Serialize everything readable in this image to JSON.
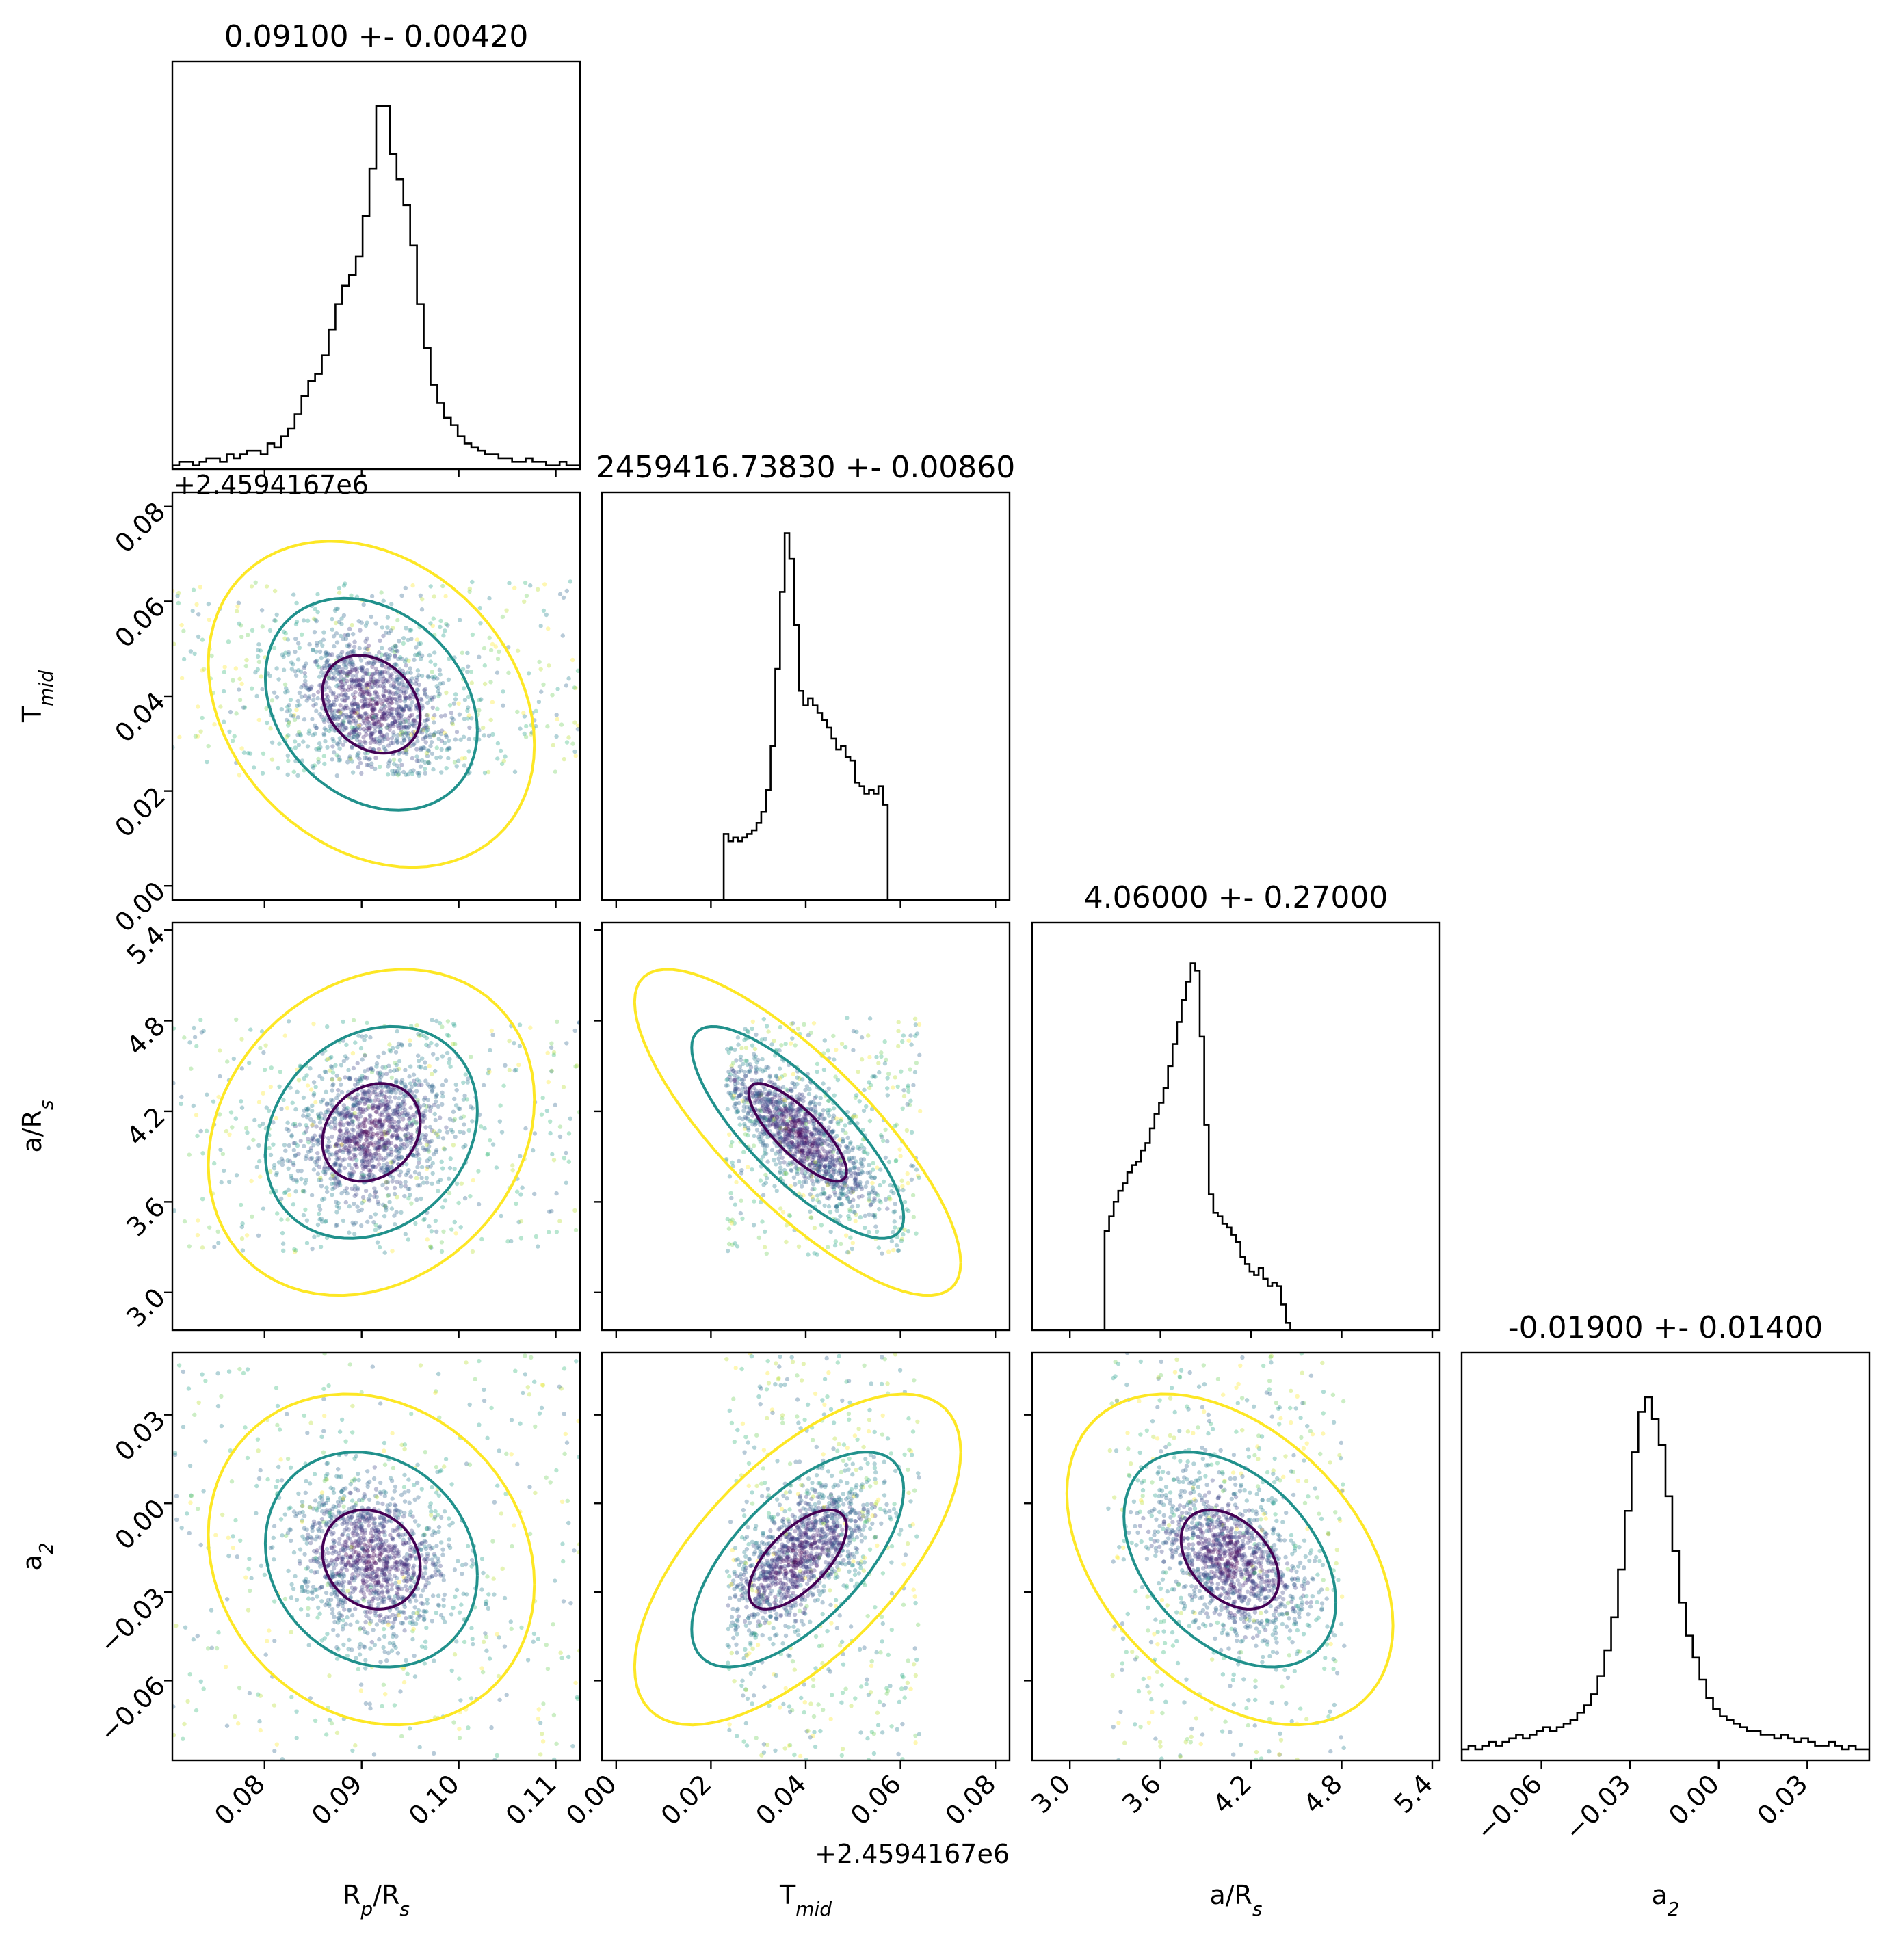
{
  "chart_data": {
    "type": "corner",
    "parameters": [
      {
        "key": "rp",
        "label": "R_p/R_s",
        "range": [
          0.0705,
          0.1125
        ],
        "ticks": [
          0.08,
          0.09,
          0.1,
          0.11
        ],
        "tick_labels": [
          "0.08",
          "0.09",
          "0.10",
          "0.11"
        ],
        "title": "0.09100 +- 0.00420",
        "mean": 0.091,
        "sigma": 0.0042,
        "offset": ""
      },
      {
        "key": "tmid",
        "label": "T_mid",
        "range": [
          -0.003,
          0.083
        ],
        "ticks": [
          0.0,
          0.02,
          0.04,
          0.06,
          0.08
        ],
        "tick_labels": [
          "0.00",
          "0.02",
          "0.04",
          "0.06",
          "0.08"
        ],
        "title": "2459416.73830 +- 0.00860",
        "mean": 0.0383,
        "sigma": 0.0086,
        "offset": "+2.4594167e6"
      },
      {
        "key": "ars",
        "label": "a/R_s",
        "range": [
          2.75,
          5.45
        ],
        "ticks": [
          3.0,
          3.6,
          4.2,
          4.8,
          5.4
        ],
        "tick_labels": [
          "3.0",
          "3.6",
          "4.2",
          "4.8",
          "5.4"
        ],
        "title": "4.06000 +- 0.27000",
        "mean": 4.06,
        "sigma": 0.27,
        "offset": ""
      },
      {
        "key": "a2",
        "label": "a_2",
        "range": [
          -0.087,
          0.051
        ],
        "ticks": [
          -0.06,
          -0.03,
          0.0,
          0.03
        ],
        "tick_labels": [
          "−0.06",
          "−0.03",
          "0.00",
          "0.03"
        ],
        "title": "-0.01900 +- 0.01400",
        "mean": -0.019,
        "sigma": 0.014,
        "offset": ""
      }
    ],
    "histograms": {
      "rp": [
        0.01,
        0.02,
        0.02,
        0.01,
        0.02,
        0.03,
        0.03,
        0.02,
        0.04,
        0.03,
        0.04,
        0.05,
        0.05,
        0.04,
        0.07,
        0.06,
        0.09,
        0.11,
        0.15,
        0.2,
        0.24,
        0.26,
        0.31,
        0.38,
        0.45,
        0.5,
        0.53,
        0.58,
        0.69,
        0.82,
        0.99,
        0.99,
        0.86,
        0.79,
        0.72,
        0.61,
        0.45,
        0.33,
        0.23,
        0.18,
        0.14,
        0.12,
        0.09,
        0.07,
        0.06,
        0.05,
        0.04,
        0.04,
        0.03,
        0.03,
        0.02,
        0.02,
        0.03,
        0.02,
        0.02,
        0.01,
        0.01,
        0.02,
        0.01,
        0.01
      ],
      "tmid": [
        0,
        0,
        0,
        0,
        0,
        0,
        0,
        0,
        0,
        0,
        0,
        0,
        0,
        0,
        0,
        0,
        0,
        0,
        0,
        0,
        0,
        0,
        0,
        0,
        0,
        0,
        0.18,
        0.16,
        0.17,
        0.16,
        0.17,
        0.18,
        0.19,
        0.21,
        0.24,
        0.3,
        0.42,
        0.63,
        0.84,
        1.0,
        0.93,
        0.75,
        0.57,
        0.53,
        0.55,
        0.53,
        0.51,
        0.49,
        0.47,
        0.44,
        0.41,
        0.42,
        0.39,
        0.38,
        0.32,
        0.31,
        0.29,
        0.3,
        0.29,
        0.31,
        0.26,
        0.0,
        0,
        0,
        0,
        0,
        0,
        0,
        0,
        0,
        0,
        0,
        0,
        0,
        0,
        0,
        0,
        0,
        0,
        0,
        0,
        0,
        0,
        0,
        0,
        0,
        0
      ],
      "ars": [
        0,
        0,
        0,
        0,
        0,
        0,
        0,
        0,
        0,
        0,
        0,
        0,
        0,
        0,
        0,
        0,
        0.27,
        0.31,
        0.35,
        0.38,
        0.4,
        0.43,
        0.45,
        0.46,
        0.49,
        0.51,
        0.55,
        0.59,
        0.62,
        0.66,
        0.72,
        0.78,
        0.84,
        0.9,
        0.95,
        1.0,
        0.98,
        0.8,
        0.56,
        0.37,
        0.32,
        0.31,
        0.29,
        0.28,
        0.26,
        0.24,
        0.2,
        0.18,
        0.16,
        0.15,
        0.17,
        0.14,
        0.12,
        0.13,
        0.12,
        0.07,
        0.02,
        0,
        0,
        0,
        0,
        0,
        0,
        0,
        0,
        0,
        0,
        0,
        0,
        0,
        0,
        0,
        0,
        0,
        0,
        0,
        0,
        0,
        0,
        0,
        0,
        0,
        0,
        0,
        0,
        0,
        0,
        0,
        0,
        0
      ],
      "a2": [
        0.03,
        0.04,
        0.03,
        0.04,
        0.05,
        0.04,
        0.05,
        0.06,
        0.07,
        0.06,
        0.07,
        0.08,
        0.09,
        0.08,
        0.09,
        0.1,
        0.11,
        0.13,
        0.15,
        0.18,
        0.23,
        0.3,
        0.39,
        0.52,
        0.68,
        0.84,
        0.95,
        0.99,
        0.93,
        0.86,
        0.72,
        0.57,
        0.43,
        0.34,
        0.28,
        0.22,
        0.17,
        0.14,
        0.12,
        0.11,
        0.1,
        0.09,
        0.08,
        0.08,
        0.07,
        0.07,
        0.06,
        0.07,
        0.06,
        0.05,
        0.06,
        0.05,
        0.04,
        0.04,
        0.05,
        0.04,
        0.03,
        0.04,
        0.03,
        0.03
      ]
    },
    "sample_box": {
      "rp": [
        0.0705,
        0.1125
      ],
      "tmid": [
        0.0232,
        0.0642
      ],
      "ars": [
        3.25,
        4.82
      ],
      "a2": [
        -0.087,
        0.051
      ]
    },
    "correlations": {
      "rp|tmid": -0.25,
      "rp|ars": 0.2,
      "rp|a2": -0.15,
      "tmid|ars": -0.8,
      "tmid|a2": 0.65,
      "ars|a2": -0.4
    },
    "contour_colors": [
      "#440154",
      "#21918c",
      "#fde725"
    ],
    "scatter_colormap": "viridis",
    "hist_color": "#000000"
  }
}
